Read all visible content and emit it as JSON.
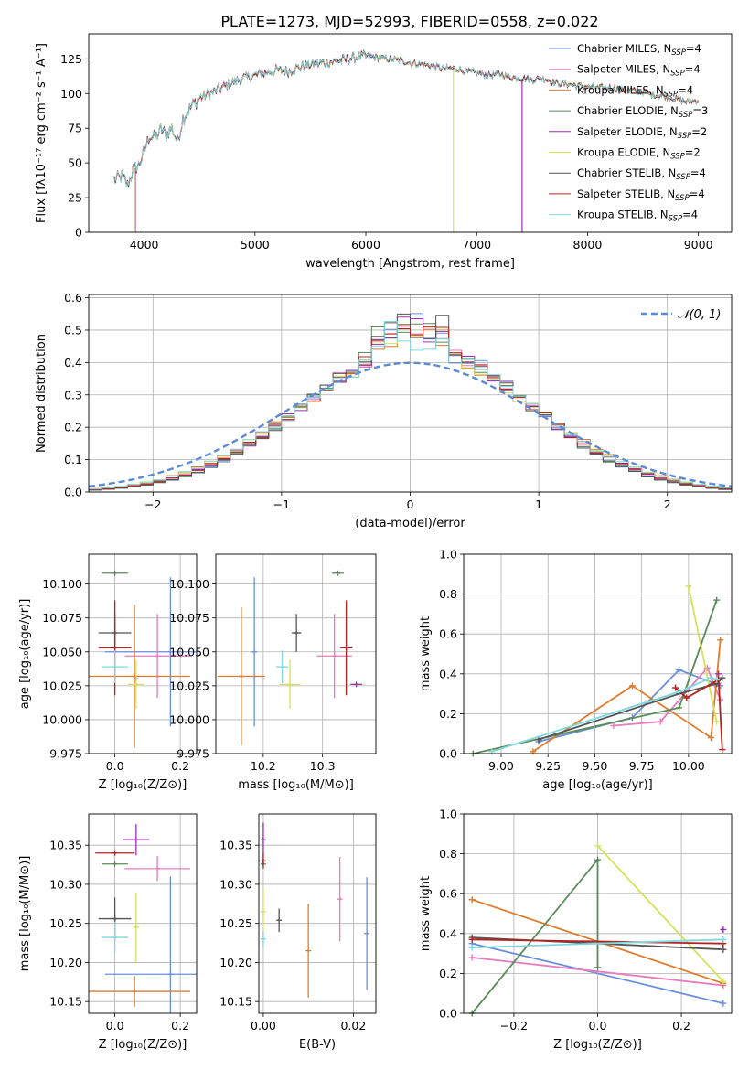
{
  "figure": {
    "title": "PLATE=1273, MJD=52993, FIBERID=0558, z=0.022"
  },
  "colors": {
    "chabrier_miles": "#6a8fdc",
    "salpeter_miles": "#e87bbd",
    "kroupa_miles": "#e07b2a",
    "chabrier_elodie": "#5a8c5a",
    "salpeter_elodie": "#9b30b5",
    "kroupa_elodie": "#d8e05a",
    "chabrier_stelib": "#555555",
    "salpeter_stelib": "#b52020",
    "kroupa_stelib": "#7fd8dc"
  },
  "chart_data": [
    {
      "id": "spectrum",
      "type": "line",
      "xlabel": "wavelength [Angstrom, rest frame]",
      "ylabel": "Flux [fλ10⁻¹⁷ erg cm⁻² s⁻¹ A⁻¹]",
      "xlim": [
        3500,
        9300
      ],
      "ylim": [
        0,
        143
      ],
      "xticks": [
        "4000",
        "5000",
        "6000",
        "7000",
        "8000",
        "9000"
      ],
      "yticks": [
        "0",
        "25",
        "50",
        "75",
        "100",
        "125"
      ],
      "grid": false,
      "legend_position": "top-right",
      "legend": [
        {
          "name": "Chabrier MILES, N",
          "sub": "SSP",
          "tail": "=4"
        },
        {
          "name": "Salpeter MILES, N",
          "sub": "SSP",
          "tail": "=4"
        },
        {
          "name": "Kroupa MILES, N",
          "sub": "SSP",
          "tail": "=4"
        },
        {
          "name": "Chabrier ELODIE, N",
          "sub": "SSP",
          "tail": "=3"
        },
        {
          "name": "Salpeter ELODIE, N",
          "sub": "SSP",
          "tail": "=2"
        },
        {
          "name": "Kroupa ELODIE, N",
          "sub": "SSP",
          "tail": "=2"
        },
        {
          "name": "Chabrier STELIB, N",
          "sub": "SSP",
          "tail": "=4"
        },
        {
          "name": "Salpeter STELIB, N",
          "sub": "SSP",
          "tail": "=4"
        },
        {
          "name": "Kroupa STELIB, N",
          "sub": "SSP",
          "tail": "=4"
        }
      ],
      "continuum": {
        "x": [
          3730,
          3800,
          3850,
          3900,
          3950,
          4000,
          4050,
          4100,
          4150,
          4200,
          4250,
          4300,
          4350,
          4400,
          4500,
          4600,
          4700,
          4800,
          4900,
          5000,
          5100,
          5200,
          5300,
          5400,
          5500,
          5600,
          5700,
          5800,
          5900,
          6000,
          6100,
          6200,
          6300,
          6400,
          6500,
          6600,
          6700,
          6800,
          6900,
          7000,
          7100,
          7200,
          7300,
          7400,
          7500,
          7600,
          7700,
          7800,
          7900,
          8000,
          8100,
          8200,
          8300,
          8400,
          8500,
          8600,
          8700,
          8800,
          8900,
          9000
        ],
        "y": [
          38,
          40,
          34,
          45,
          48,
          58,
          70,
          68,
          74,
          70,
          76,
          65,
          82,
          88,
          97,
          100,
          104,
          108,
          111,
          113,
          115,
          117,
          116,
          119,
          121,
          122,
          123,
          124,
          126,
          127,
          126,
          125,
          124,
          122,
          121,
          120,
          118,
          118,
          116,
          115,
          113,
          114,
          112,
          111,
          110,
          111,
          108,
          107,
          106,
          105,
          104,
          104,
          103,
          102,
          101,
          99,
          98,
          96,
          94,
          95
        ]
      },
      "dips": [
        {
          "model": "kroupa_elodie",
          "start": 3915,
          "end": 6790
        },
        {
          "model": "salpeter_elodie",
          "start": 3920,
          "end": 7410
        }
      ]
    },
    {
      "id": "residuals",
      "type": "bar",
      "xlabel": "(data-model)/error",
      "ylabel": "Normed distribution",
      "xlim": [
        -2.5,
        2.5
      ],
      "ylim": [
        0,
        0.61
      ],
      "xticks": [
        "−2",
        "−1",
        "0",
        "1",
        "2"
      ],
      "yticks": [
        "0.0",
        "0.1",
        "0.2",
        "0.3",
        "0.4",
        "0.5",
        "0.6"
      ],
      "grid": true,
      "legend_position": "top-right",
      "legend_label": "𝒩(0, 1)",
      "bin_edges_range": [
        -2.5,
        2.5
      ],
      "bins": 50,
      "normal_mu": 0,
      "normal_sigma": 1
    },
    {
      "id": "age-vs-Z",
      "type": "scatter",
      "xlabel": "Z [log₁₀(Z/Z⊙)]",
      "ylabel": "age  [log₁₀(age/yr)]",
      "xlim": [
        -0.08,
        0.25
      ],
      "ylim": [
        9.975,
        10.122
      ],
      "xticks": [
        "0.0",
        "0.2"
      ],
      "yticks": [
        "9.975",
        "10.000",
        "10.025",
        "10.050",
        "10.075",
        "10.100"
      ],
      "grid": true,
      "points": [
        {
          "model": "chabrier_miles",
          "x": 0.17,
          "y": 10.05,
          "xerr": 0.2,
          "yerr": 0.055
        },
        {
          "model": "salpeter_miles",
          "x": 0.13,
          "y": 10.047,
          "xerr": 0.1,
          "yerr": 0.031
        },
        {
          "model": "kroupa_miles",
          "x": 0.06,
          "y": 10.032,
          "xerr": 0.17,
          "yerr": 0.053
        },
        {
          "model": "chabrier_elodie",
          "x": 0.0,
          "y": 10.108,
          "xerr": 0.04,
          "yerr": 0.0
        },
        {
          "model": "salpeter_elodie",
          "x": 0.065,
          "y": 10.03,
          "xerr": 0.0,
          "yerr": 0.0
        },
        {
          "model": "kroupa_elodie",
          "x": 0.065,
          "y": 10.026,
          "xerr": 0.025,
          "yerr": 0.018
        },
        {
          "model": "chabrier_stelib",
          "x": 0.0,
          "y": 10.064,
          "xerr": 0.05,
          "yerr": 0.014
        },
        {
          "model": "salpeter_stelib",
          "x": 0.0,
          "y": 10.053,
          "xerr": 0.05,
          "yerr": 0.035
        },
        {
          "model": "kroupa_stelib",
          "x": 0.0,
          "y": 10.039,
          "xerr": 0.04,
          "yerr": 0.012
        }
      ]
    },
    {
      "id": "age-vs-mass",
      "type": "scatter",
      "xlabel": "mass [log₁₀(M/M⊙)]",
      "ylabel": "",
      "xlim": [
        10.12,
        10.39
      ],
      "ylim": [
        9.975,
        10.122
      ],
      "xticks": [
        "10.2",
        "10.3"
      ],
      "yticks": [
        "9.975",
        "10.000",
        "10.025",
        "10.050",
        "10.075",
        "10.100"
      ],
      "grid": true,
      "points": [
        {
          "model": "chabrier_miles",
          "x": 10.185,
          "y": 10.05,
          "xerr": 0.0,
          "yerr": 0.055
        },
        {
          "model": "salpeter_miles",
          "x": 10.32,
          "y": 10.047,
          "xerr": 0.03,
          "yerr": 0.031
        },
        {
          "model": "kroupa_miles",
          "x": 10.163,
          "y": 10.032,
          "xerr": 0.04,
          "yerr": 0.051
        },
        {
          "model": "chabrier_elodie",
          "x": 10.326,
          "y": 10.108,
          "xerr": 0.01,
          "yerr": 0.0
        },
        {
          "model": "salpeter_elodie",
          "x": 10.357,
          "y": 10.026,
          "xerr": 0.01,
          "yerr": 0.0
        },
        {
          "model": "kroupa_elodie",
          "x": 10.245,
          "y": 10.026,
          "xerr": 0.018,
          "yerr": 0.018
        },
        {
          "model": "chabrier_stelib",
          "x": 10.256,
          "y": 10.064,
          "xerr": 0.008,
          "yerr": 0.014
        },
        {
          "model": "salpeter_stelib",
          "x": 10.34,
          "y": 10.053,
          "xerr": 0.01,
          "yerr": 0.035
        },
        {
          "model": "kroupa_stelib",
          "x": 10.232,
          "y": 10.039,
          "xerr": 0.01,
          "yerr": 0.012
        }
      ]
    },
    {
      "id": "massweight-vs-age",
      "type": "line",
      "xlabel": "age  [log₁₀(age/yr)]",
      "ylabel": "mass weight",
      "xlim": [
        8.8,
        10.23
      ],
      "ylim": [
        0.0,
        1.0
      ],
      "xticks": [
        "9.00",
        "9.25",
        "9.50",
        "9.75",
        "10.00"
      ],
      "yticks": [
        "0.0",
        "0.2",
        "0.4",
        "0.6",
        "0.8",
        "1.0"
      ],
      "grid": true,
      "series": [
        {
          "model": "chabrier_miles",
          "x": [
            9.2,
            9.7,
            9.95,
            10.17
          ],
          "y": [
            0.06,
            0.18,
            0.42,
            0.34
          ]
        },
        {
          "model": "salpeter_miles",
          "x": [
            9.6,
            9.85,
            10.1,
            10.17
          ],
          "y": [
            0.14,
            0.16,
            0.43,
            0.27
          ]
        },
        {
          "model": "kroupa_miles",
          "x": [
            9.17,
            9.7,
            10.12,
            10.17
          ],
          "y": [
            0.01,
            0.34,
            0.08,
            0.57
          ]
        },
        {
          "model": "chabrier_elodie",
          "x": [
            8.85,
            9.95,
            10.15
          ],
          "y": [
            0.0,
            0.23,
            0.77
          ]
        },
        {
          "model": "salpeter_elodie",
          "x": [
            10.16
          ],
          "y": [
            0.4
          ]
        },
        {
          "model": "kroupa_elodie",
          "x": [
            10.0,
            10.15
          ],
          "y": [
            0.84,
            0.16
          ]
        },
        {
          "model": "chabrier_stelib",
          "x": [
            9.2,
            9.95,
            10.15,
            10.18
          ],
          "y": [
            0.07,
            0.3,
            0.35,
            0.38
          ]
        },
        {
          "model": "salpeter_stelib",
          "x": [
            9.93,
            9.99,
            10.16,
            10.18
          ],
          "y": [
            0.33,
            0.28,
            0.37,
            0.02
          ]
        },
        {
          "model": "kroupa_stelib",
          "x": [
            8.95,
            9.95,
            10.12,
            10.15
          ],
          "y": [
            0.01,
            0.31,
            0.38,
            0.37
          ]
        }
      ]
    },
    {
      "id": "mass-vs-Z",
      "type": "scatter",
      "xlabel": "Z [log₁₀(Z/Z⊙)]",
      "ylabel": "mass [log₁₀(M/M⊙)]",
      "xlim": [
        -0.08,
        0.25
      ],
      "ylim": [
        10.135,
        10.39
      ],
      "xticks": [
        "0.0",
        "0.2"
      ],
      "yticks": [
        "10.15",
        "10.20",
        "10.25",
        "10.30",
        "10.35"
      ],
      "grid": true,
      "points": [
        {
          "model": "chabrier_miles",
          "x": 0.17,
          "y": 10.185,
          "xerr": 0.2,
          "yerr": 0.125
        },
        {
          "model": "salpeter_miles",
          "x": 0.13,
          "y": 10.32,
          "xerr": 0.1,
          "yerr": 0.016
        },
        {
          "model": "kroupa_miles",
          "x": 0.06,
          "y": 10.163,
          "xerr": 0.17,
          "yerr": 0.02
        },
        {
          "model": "chabrier_elodie",
          "x": 0.0,
          "y": 10.326,
          "xerr": 0.04,
          "yerr": 0.0
        },
        {
          "model": "salpeter_elodie",
          "x": 0.065,
          "y": 10.357,
          "xerr": 0.04,
          "yerr": 0.02
        },
        {
          "model": "kroupa_elodie",
          "x": 0.065,
          "y": 10.245,
          "xerr": 0.01,
          "yerr": 0.045
        },
        {
          "model": "chabrier_stelib",
          "x": 0.0,
          "y": 10.256,
          "xerr": 0.05,
          "yerr": 0.027
        },
        {
          "model": "salpeter_stelib",
          "x": 0.0,
          "y": 10.34,
          "xerr": 0.06,
          "yerr": 0.0
        },
        {
          "model": "kroupa_stelib",
          "x": 0.0,
          "y": 10.232,
          "xerr": 0.04,
          "yerr": 0.02
        }
      ]
    },
    {
      "id": "mass-vs-EBV",
      "type": "scatter",
      "xlabel": "E(B-V)",
      "ylabel": "",
      "xlim": [
        -0.001,
        0.025
      ],
      "ylim": [
        10.135,
        10.39
      ],
      "xticks": [
        "0.00",
        "0.02"
      ],
      "yticks": [
        "10.15",
        "10.20",
        "10.25",
        "10.30",
        "10.35"
      ],
      "grid": true,
      "points": [
        {
          "model": "chabrier_miles",
          "x": 0.023,
          "y": 10.237,
          "xerr": 0,
          "yerr": 0.072
        },
        {
          "model": "salpeter_miles",
          "x": 0.017,
          "y": 10.281,
          "xerr": 0,
          "yerr": 0.054
        },
        {
          "model": "kroupa_miles",
          "x": 0.01,
          "y": 10.215,
          "xerr": 0,
          "yerr": 0.06
        },
        {
          "model": "chabrier_elodie",
          "x": 0.0,
          "y": 10.326,
          "xerr": 0,
          "yerr": 0.0
        },
        {
          "model": "salpeter_elodie",
          "x": 0.0,
          "y": 10.357,
          "xerr": 0,
          "yerr": 0.022
        },
        {
          "model": "kroupa_elodie",
          "x": 0.0,
          "y": 10.265,
          "xerr": 0,
          "yerr": 0.03
        },
        {
          "model": "chabrier_stelib",
          "x": 0.0035,
          "y": 10.254,
          "xerr": 0,
          "yerr": 0.015
        },
        {
          "model": "salpeter_stelib",
          "x": 0.0,
          "y": 10.33,
          "xerr": 0,
          "yerr": 0.01
        },
        {
          "model": "kroupa_stelib",
          "x": 0.0,
          "y": 10.23,
          "xerr": 0,
          "yerr": 0.01
        }
      ]
    },
    {
      "id": "massweight-vs-Z",
      "type": "line",
      "xlabel": "Z [log₁₀(Z/Z⊙)]",
      "ylabel": "mass weight",
      "xlim": [
        -0.32,
        0.32
      ],
      "ylim": [
        0.0,
        1.0
      ],
      "xticks": [
        "−0.2",
        "0.0",
        "0.2"
      ],
      "yticks": [
        "0.0",
        "0.2",
        "0.4",
        "0.6",
        "0.8",
        "1.0"
      ],
      "grid": true,
      "series": [
        {
          "model": "chabrier_miles",
          "x": [
            -0.3,
            0.3
          ],
          "y": [
            0.35,
            0.05
          ]
        },
        {
          "model": "salpeter_miles",
          "x": [
            -0.3,
            0.3
          ],
          "y": [
            0.28,
            0.14
          ]
        },
        {
          "model": "kroupa_miles",
          "x": [
            -0.3,
            0.3
          ],
          "y": [
            0.57,
            0.15
          ]
        },
        {
          "model": "chabrier_elodie",
          "x": [
            -0.3,
            0.0,
            0.0
          ],
          "y": [
            0.0,
            0.77,
            0.23
          ]
        },
        {
          "model": "salpeter_elodie",
          "x": [
            0.3
          ],
          "y": [
            0.42
          ]
        },
        {
          "model": "kroupa_elodie",
          "x": [
            0.0,
            0.3
          ],
          "y": [
            0.84,
            0.16
          ]
        },
        {
          "model": "chabrier_stelib",
          "x": [
            -0.3,
            0.3
          ],
          "y": [
            0.38,
            0.32
          ]
        },
        {
          "model": "salpeter_stelib",
          "x": [
            -0.3,
            0.3
          ],
          "y": [
            0.37,
            0.35
          ]
        },
        {
          "model": "kroupa_stelib",
          "x": [
            -0.3,
            0.3
          ],
          "y": [
            0.33,
            0.37
          ]
        }
      ]
    }
  ]
}
